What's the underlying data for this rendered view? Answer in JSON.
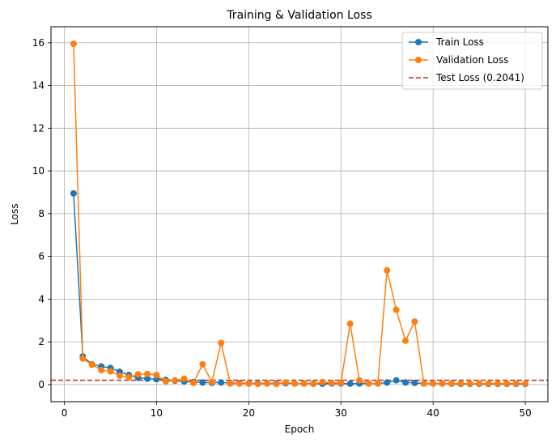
{
  "chart_data": {
    "type": "line",
    "title": "Training & Validation Loss",
    "xlabel": "Epoch",
    "ylabel": "Loss",
    "xlim": [
      -1.45,
      52.45
    ],
    "ylim": [
      -0.8,
      16.75
    ],
    "xticks": [
      0,
      10,
      20,
      30,
      40,
      50
    ],
    "yticks": [
      0,
      2,
      4,
      6,
      8,
      10,
      12,
      14,
      16
    ],
    "grid": true,
    "legend_position": "top-right",
    "x": [
      1,
      2,
      3,
      4,
      5,
      6,
      7,
      8,
      9,
      10,
      11,
      12,
      13,
      14,
      15,
      16,
      17,
      18,
      19,
      20,
      21,
      22,
      23,
      24,
      25,
      26,
      27,
      28,
      29,
      30,
      31,
      32,
      33,
      34,
      35,
      36,
      37,
      38,
      39,
      40,
      41,
      42,
      43,
      44,
      45,
      46,
      47,
      48,
      49,
      50
    ],
    "series": [
      {
        "name": "Train Loss",
        "color": "#1f77b4",
        "values": [
          8.95,
          1.32,
          0.95,
          0.85,
          0.78,
          0.6,
          0.45,
          0.32,
          0.28,
          0.25,
          0.22,
          0.18,
          0.15,
          0.12,
          0.1,
          0.08,
          0.1,
          0.07,
          0.07,
          0.06,
          0.06,
          0.06,
          0.06,
          0.06,
          0.05,
          0.05,
          0.05,
          0.04,
          0.05,
          0.05,
          0.04,
          0.05,
          0.05,
          0.05,
          0.1,
          0.2,
          0.1,
          0.08,
          0.05,
          0.05,
          0.05,
          0.04,
          0.03,
          0.03,
          0.03,
          0.03,
          0.03,
          0.03,
          0.03,
          0.03
        ]
      },
      {
        "name": "Validation Loss",
        "color": "#ff7f0e",
        "values": [
          15.95,
          1.22,
          0.93,
          0.68,
          0.62,
          0.42,
          0.35,
          0.48,
          0.5,
          0.45,
          0.15,
          0.2,
          0.28,
          0.08,
          0.95,
          0.12,
          1.95,
          0.05,
          0.05,
          0.05,
          0.03,
          0.05,
          0.03,
          0.1,
          0.05,
          0.05,
          0.03,
          0.12,
          0.08,
          0.08,
          2.85,
          0.2,
          0.05,
          0.05,
          5.35,
          3.5,
          2.05,
          2.95,
          0.05,
          0.05,
          0.05,
          0.05,
          0.05,
          0.05,
          0.05,
          0.05,
          0.05,
          0.05,
          0.05,
          0.05
        ]
      }
    ],
    "reference_lines": [
      {
        "name": "Test Loss (0.2041)",
        "y": 0.2041,
        "color": "#d62728",
        "style": "dashed"
      }
    ]
  }
}
